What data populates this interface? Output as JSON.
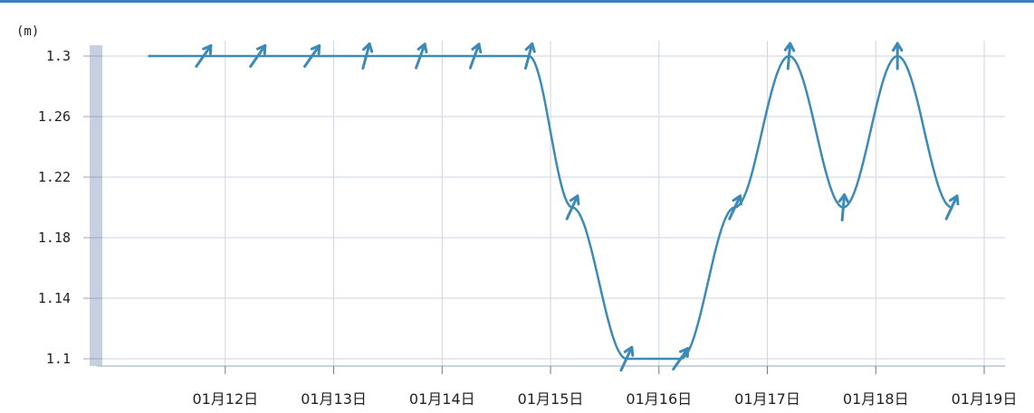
{
  "chart_data": {
    "type": "line",
    "unit": "(m)",
    "x_tick_labels": [
      "01月12日",
      "01月13日",
      "01月14日",
      "01月15日",
      "01月16日",
      "01月17日",
      "01月18日",
      "01月19日"
    ],
    "y_ticks": [
      1.1,
      1.14,
      1.18,
      1.22,
      1.26,
      1.3
    ],
    "y_tick_labels": [
      "1.1",
      "1.14",
      "1.18",
      "1.22",
      "1.26",
      "1.3"
    ],
    "ylim": [
      1.1,
      1.3
    ],
    "xlim": [
      11.3,
      19.0
    ],
    "grid": true,
    "series_color": "#3c8ab5",
    "axis_band_color": "#c5d1e0",
    "points": [
      {
        "x": 11.3,
        "y": 1.3
      },
      {
        "x": 11.8,
        "y": 1.3
      },
      {
        "x": 12.3,
        "y": 1.3
      },
      {
        "x": 12.8,
        "y": 1.3
      },
      {
        "x": 13.3,
        "y": 1.3
      },
      {
        "x": 13.8,
        "y": 1.3
      },
      {
        "x": 14.3,
        "y": 1.3
      },
      {
        "x": 14.8,
        "y": 1.3
      },
      {
        "x": 15.2,
        "y": 1.2
      },
      {
        "x": 15.7,
        "y": 1.1
      },
      {
        "x": 16.2,
        "y": 1.1
      },
      {
        "x": 16.7,
        "y": 1.2
      },
      {
        "x": 17.2,
        "y": 1.3
      },
      {
        "x": 17.7,
        "y": 1.2
      },
      {
        "x": 18.2,
        "y": 1.3
      },
      {
        "x": 18.7,
        "y": 1.2
      }
    ],
    "arrows": [
      {
        "x": 11.8,
        "y": 1.3,
        "direction_deg": 35
      },
      {
        "x": 12.3,
        "y": 1.3,
        "direction_deg": 35
      },
      {
        "x": 12.8,
        "y": 1.3,
        "direction_deg": 35
      },
      {
        "x": 13.3,
        "y": 1.3,
        "direction_deg": 15
      },
      {
        "x": 13.8,
        "y": 1.3,
        "direction_deg": 20
      },
      {
        "x": 14.3,
        "y": 1.3,
        "direction_deg": 20
      },
      {
        "x": 14.8,
        "y": 1.3,
        "direction_deg": 15
      },
      {
        "x": 15.2,
        "y": 1.2,
        "direction_deg": 25
      },
      {
        "x": 15.7,
        "y": 1.1,
        "direction_deg": 25
      },
      {
        "x": 16.2,
        "y": 1.1,
        "direction_deg": 35
      },
      {
        "x": 16.7,
        "y": 1.2,
        "direction_deg": 25
      },
      {
        "x": 17.2,
        "y": 1.3,
        "direction_deg": 5
      },
      {
        "x": 17.7,
        "y": 1.2,
        "direction_deg": 5
      },
      {
        "x": 18.2,
        "y": 1.3,
        "direction_deg": 0
      },
      {
        "x": 18.7,
        "y": 1.2,
        "direction_deg": 25
      }
    ]
  }
}
